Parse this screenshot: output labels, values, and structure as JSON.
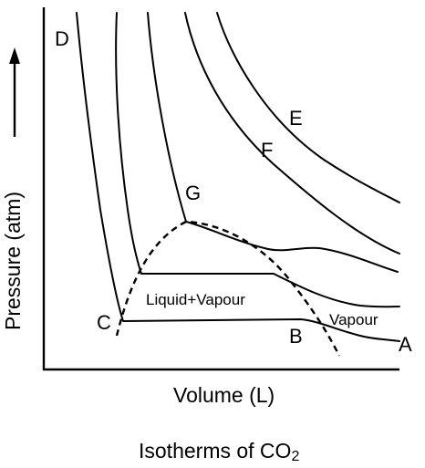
{
  "figure": {
    "caption": "Isotherms of CO",
    "caption_subscript": "2"
  },
  "axes": {
    "x_label": "Volume (L)",
    "y_label": "Pressure (atm)"
  },
  "points": {
    "A": "A",
    "B": "B",
    "C": "C",
    "D": "D",
    "E": "E",
    "F": "F",
    "G": "G"
  },
  "regions": {
    "two_phase": "Liquid+Vapour",
    "vapour": "Vapour"
  },
  "colors": {
    "ink": "#000000",
    "background": "#ffffff"
  }
}
